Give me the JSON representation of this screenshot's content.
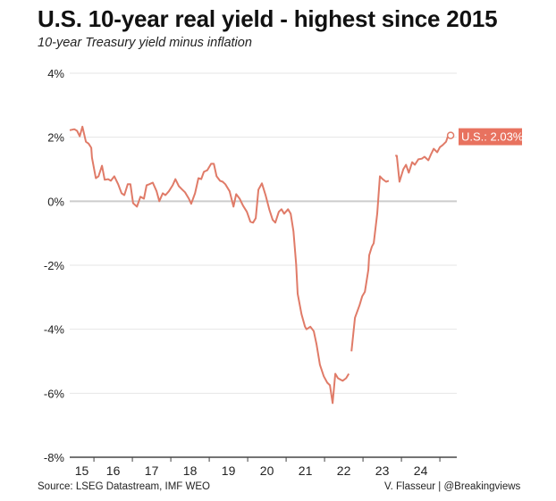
{
  "header": {
    "title": "U.S. 10-year real yield - highest since 2015",
    "subtitle": "10-year Treasury yield minus inflation"
  },
  "footer": {
    "source": "Source: LSEG Datastream, IMF WEO",
    "credit": "V. Flasseur | @Breakingviews"
  },
  "colors": {
    "line": "#e07b68",
    "label_bg": "#e8725f",
    "grid": "#e6e6e6",
    "zero": "#cccccc",
    "axis": "#222222"
  },
  "chart_data": {
    "type": "line",
    "title": "U.S. 10-year real yield - highest since 2015",
    "subtitle": "10-year Treasury yield minus inflation",
    "xlabel": "",
    "ylabel": "",
    "ylim": [
      -8,
      4
    ],
    "xlim": [
      2015.37,
      2025.44
    ],
    "y_ticks": [
      4,
      2,
      0,
      -2,
      -4,
      -6,
      -8
    ],
    "y_tick_labels": [
      "4%",
      "2%",
      "0%",
      "-2%",
      "-4%",
      "-6%",
      "-8%"
    ],
    "x_tick_boundaries": [
      2016,
      2017,
      2018,
      2019,
      2020,
      2021,
      2022,
      2023,
      2024,
      2025
    ],
    "x_labels": [
      {
        "year": 2015,
        "label": "15"
      },
      {
        "year": 2016,
        "label": "16"
      },
      {
        "year": 2017,
        "label": "17"
      },
      {
        "year": 2018,
        "label": "18"
      },
      {
        "year": 2019,
        "label": "19"
      },
      {
        "year": 2020,
        "label": "20"
      },
      {
        "year": 2021,
        "label": "21"
      },
      {
        "year": 2022,
        "label": "22"
      },
      {
        "year": 2023,
        "label": "23"
      },
      {
        "year": 2024,
        "label": "24"
      }
    ],
    "grid": true,
    "legend": "none",
    "annotation": {
      "label": "U.S.: 2.03%",
      "x": 2025.21,
      "y": 2.03,
      "placement": "right of last point"
    },
    "series": [
      {
        "name": "U.S.",
        "segments": [
          [
            [
              2015.37,
              2.22
            ],
            [
              2015.49,
              2.25
            ],
            [
              2015.56,
              2.2
            ],
            [
              2015.63,
              2.03
            ],
            [
              2015.7,
              2.33
            ],
            [
              2015.79,
              1.86
            ],
            [
              2015.86,
              1.8
            ],
            [
              2015.93,
              1.67
            ],
            [
              2015.95,
              1.36
            ],
            [
              2016.05,
              0.72
            ],
            [
              2016.12,
              0.78
            ],
            [
              2016.21,
              1.11
            ],
            [
              2016.28,
              0.67
            ],
            [
              2016.37,
              0.69
            ],
            [
              2016.44,
              0.64
            ],
            [
              2016.53,
              0.78
            ],
            [
              2016.63,
              0.53
            ],
            [
              2016.72,
              0.25
            ],
            [
              2016.79,
              0.19
            ],
            [
              2016.88,
              0.53
            ],
            [
              2016.95,
              0.53
            ],
            [
              2017.02,
              -0.06
            ],
            [
              2017.12,
              -0.17
            ],
            [
              2017.21,
              0.14
            ],
            [
              2017.3,
              0.08
            ],
            [
              2017.37,
              0.5
            ],
            [
              2017.44,
              0.53
            ],
            [
              2017.53,
              0.58
            ],
            [
              2017.63,
              0.31
            ],
            [
              2017.7,
              0.0
            ],
            [
              2017.79,
              0.25
            ],
            [
              2017.86,
              0.19
            ],
            [
              2017.95,
              0.31
            ],
            [
              2018.05,
              0.5
            ],
            [
              2018.12,
              0.69
            ],
            [
              2018.21,
              0.47
            ],
            [
              2018.3,
              0.36
            ],
            [
              2018.37,
              0.28
            ],
            [
              2018.47,
              0.08
            ],
            [
              2018.53,
              -0.08
            ],
            [
              2018.63,
              0.25
            ],
            [
              2018.72,
              0.72
            ],
            [
              2018.79,
              0.69
            ],
            [
              2018.86,
              0.92
            ],
            [
              2018.95,
              0.97
            ],
            [
              2019.05,
              1.17
            ],
            [
              2019.12,
              1.17
            ],
            [
              2019.19,
              0.78
            ],
            [
              2019.28,
              0.64
            ],
            [
              2019.35,
              0.61
            ],
            [
              2019.42,
              0.53
            ],
            [
              2019.53,
              0.31
            ],
            [
              2019.63,
              -0.17
            ],
            [
              2019.7,
              0.22
            ],
            [
              2019.79,
              0.08
            ],
            [
              2019.88,
              -0.14
            ],
            [
              2019.98,
              -0.33
            ],
            [
              2020.07,
              -0.64
            ],
            [
              2020.14,
              -0.67
            ],
            [
              2020.21,
              -0.53
            ],
            [
              2020.28,
              0.36
            ],
            [
              2020.37,
              0.56
            ],
            [
              2020.47,
              0.17
            ],
            [
              2020.56,
              -0.25
            ],
            [
              2020.65,
              -0.58
            ],
            [
              2020.72,
              -0.67
            ],
            [
              2020.81,
              -0.33
            ],
            [
              2020.88,
              -0.25
            ],
            [
              2020.95,
              -0.39
            ],
            [
              2021.05,
              -0.25
            ],
            [
              2021.12,
              -0.39
            ],
            [
              2021.19,
              -0.94
            ],
            [
              2021.26,
              -1.97
            ],
            [
              2021.3,
              -2.89
            ],
            [
              2021.4,
              -3.53
            ],
            [
              2021.49,
              -3.92
            ],
            [
              2021.53,
              -4.0
            ],
            [
              2021.63,
              -3.92
            ],
            [
              2021.72,
              -4.06
            ],
            [
              2021.79,
              -4.47
            ],
            [
              2021.88,
              -5.11
            ],
            [
              2021.98,
              -5.47
            ],
            [
              2022.07,
              -5.67
            ],
            [
              2022.14,
              -5.75
            ],
            [
              2022.21,
              -6.31
            ],
            [
              2022.28,
              -5.39
            ],
            [
              2022.35,
              -5.53
            ],
            [
              2022.47,
              -5.61
            ],
            [
              2022.56,
              -5.53
            ],
            [
              2022.63,
              -5.39
            ]
          ],
          [
            [
              2022.7,
              -4.69
            ],
            [
              2022.79,
              -3.64
            ],
            [
              2022.91,
              -3.25
            ],
            [
              2022.98,
              -2.97
            ],
            [
              2023.05,
              -2.83
            ],
            [
              2023.14,
              -2.14
            ],
            [
              2023.16,
              -1.69
            ],
            [
              2023.23,
              -1.42
            ],
            [
              2023.28,
              -1.31
            ],
            [
              2023.37,
              -0.39
            ],
            [
              2023.44,
              0.78
            ],
            [
              2023.51,
              0.69
            ],
            [
              2023.6,
              0.61
            ],
            [
              2023.67,
              0.64
            ]
          ],
          [
            [
              2023.84,
              1.42
            ],
            [
              2023.88,
              1.42
            ],
            [
              2023.95,
              0.61
            ],
            [
              2024.05,
              1.0
            ],
            [
              2024.12,
              1.14
            ],
            [
              2024.19,
              0.89
            ],
            [
              2024.28,
              1.22
            ],
            [
              2024.35,
              1.14
            ],
            [
              2024.44,
              1.31
            ],
            [
              2024.53,
              1.33
            ],
            [
              2024.6,
              1.39
            ],
            [
              2024.7,
              1.28
            ],
            [
              2024.77,
              1.47
            ],
            [
              2024.84,
              1.64
            ],
            [
              2024.93,
              1.53
            ],
            [
              2025.0,
              1.69
            ],
            [
              2025.07,
              1.75
            ],
            [
              2025.16,
              1.86
            ],
            [
              2025.21,
              2.03
            ]
          ]
        ]
      }
    ]
  }
}
